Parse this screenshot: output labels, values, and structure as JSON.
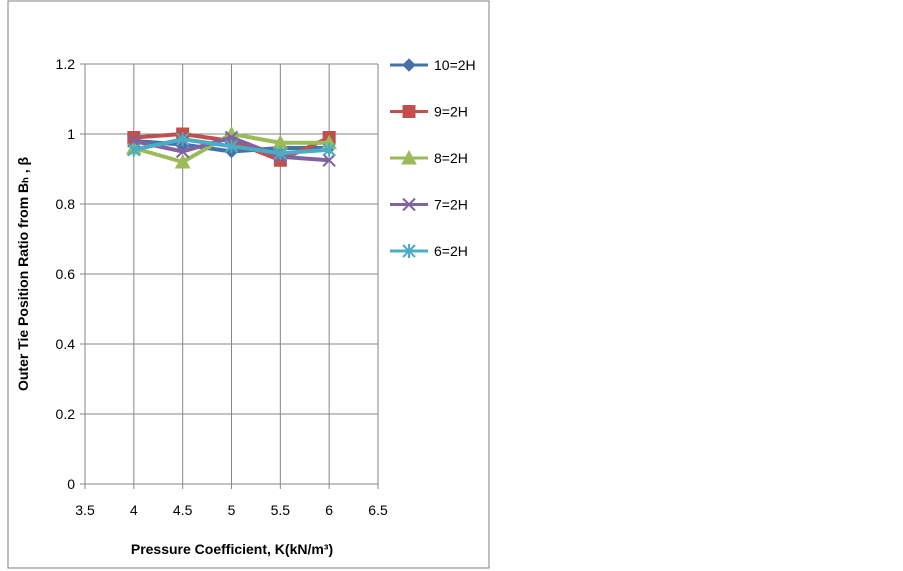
{
  "chart_data": {
    "type": "line",
    "title": "",
    "xlabel": "Pressure Coefficient, K(kN/m³)",
    "ylabel": "Outer Tie Position Ratio from Bₕ , β",
    "xlim": [
      3.5,
      6.5
    ],
    "ylim": [
      0,
      1.2
    ],
    "x_ticks": [
      "3.5",
      "4",
      "4.5",
      "5",
      "5.5",
      "6",
      "6.5"
    ],
    "y_ticks": [
      "0",
      "0.2",
      "0.4",
      "0.6",
      "0.8",
      "1",
      "1.2"
    ],
    "grid": true,
    "legend_position": "right",
    "x": [
      4,
      4.5,
      5,
      5.5,
      6
    ],
    "series": [
      {
        "name": "10=2H",
        "color": "#4572A7",
        "marker": "diamond",
        "values": [
          0.98,
          0.97,
          0.95,
          0.96,
          0.96
        ]
      },
      {
        "name": "9=2H",
        "color": "#C0504D",
        "marker": "square",
        "values": [
          0.99,
          1.0,
          0.98,
          0.925,
          0.99
        ]
      },
      {
        "name": "8=2H",
        "color": "#9BBB59",
        "marker": "triangle",
        "values": [
          0.96,
          0.92,
          1.0,
          0.975,
          0.975
        ]
      },
      {
        "name": "7=2H",
        "color": "#8064A2",
        "marker": "x",
        "values": [
          0.98,
          0.95,
          0.99,
          0.935,
          0.925
        ]
      },
      {
        "name": "6=2H",
        "color": "#4BACC6",
        "marker": "star",
        "values": [
          0.955,
          0.985,
          0.965,
          0.945,
          0.955
        ]
      }
    ]
  }
}
